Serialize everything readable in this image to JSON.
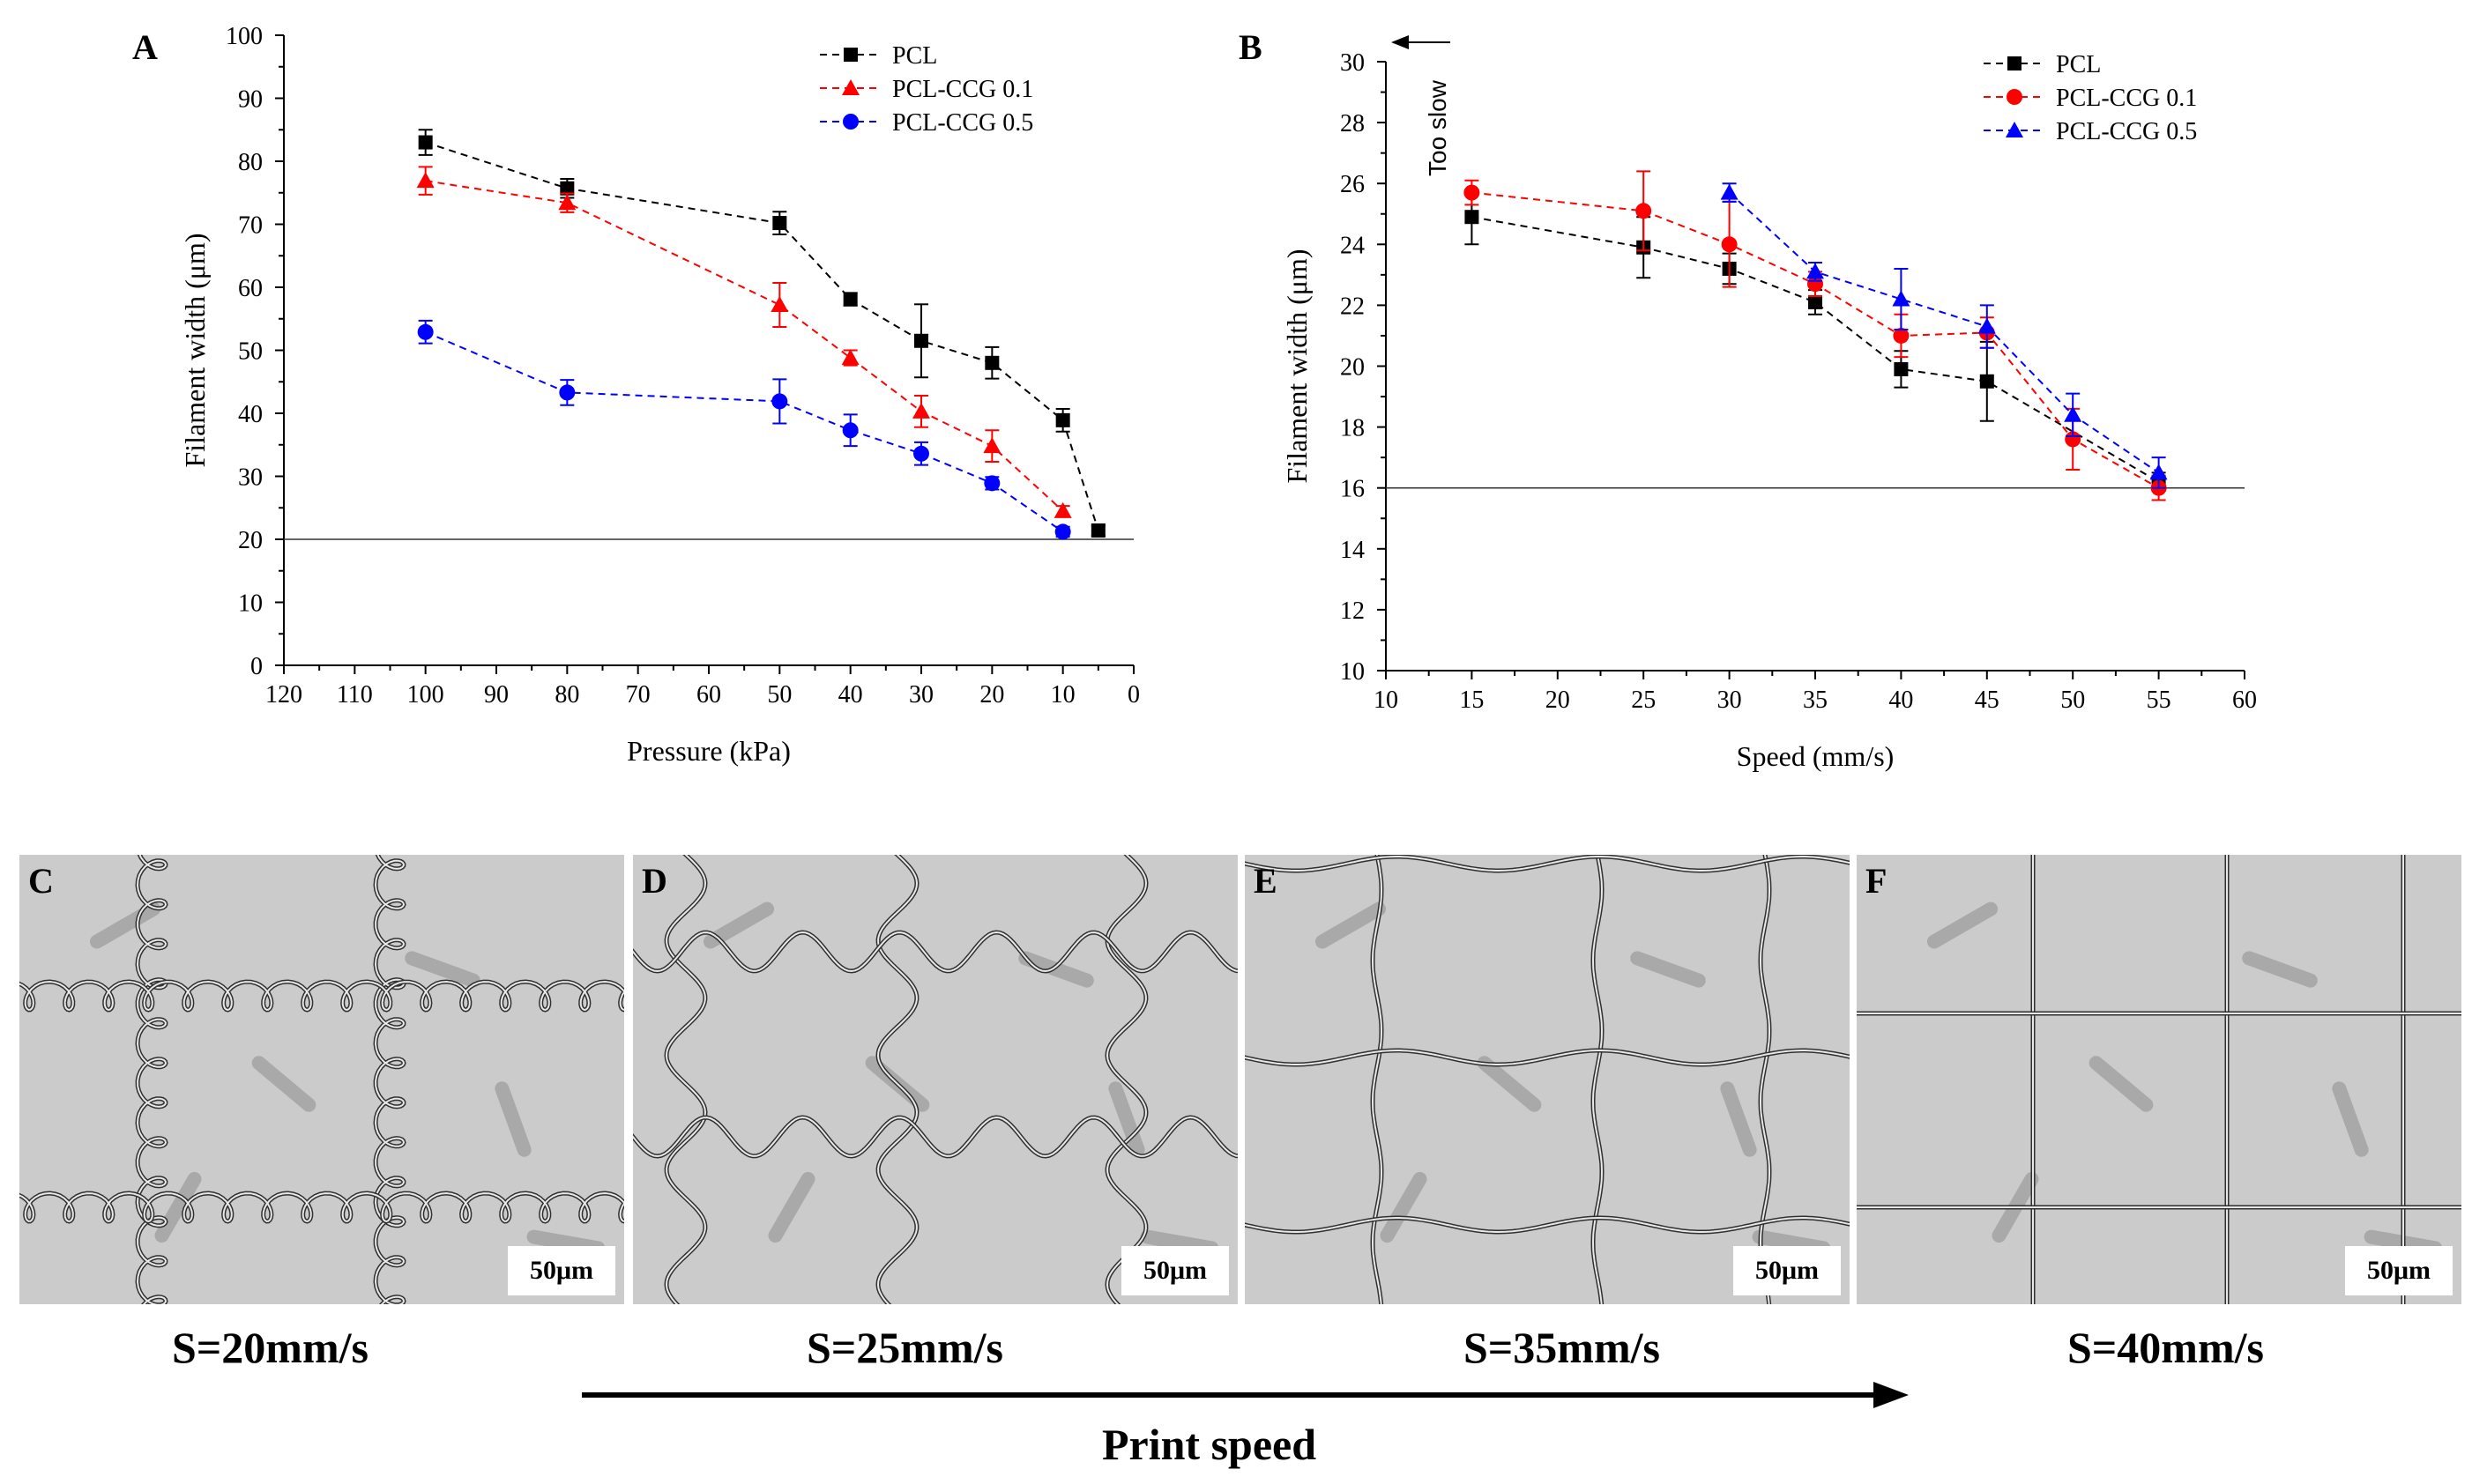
{
  "chart_data": [
    {
      "panel": "A",
      "type": "line",
      "xlabel": "Pressure (kPa)",
      "ylabel": "Filament width (μm)",
      "xlim": [
        120,
        0
      ],
      "ylim": [
        0,
        100
      ],
      "xticks": [
        "120",
        "110",
        "100",
        "90",
        "80",
        "70",
        "60",
        "50",
        "40",
        "30",
        "20",
        "10",
        "0"
      ],
      "yticks": [
        "0",
        "10",
        "20",
        "30",
        "40",
        "50",
        "60",
        "70",
        "80",
        "90",
        "100"
      ],
      "reference_line_y": 20,
      "legend_position": "top-right",
      "series": [
        {
          "name": "PCL",
          "color": "#000000",
          "marker": "square",
          "x": [
            100,
            80,
            50,
            40,
            30,
            20,
            10,
            5
          ],
          "values": [
            83,
            75.7,
            70.2,
            58.1,
            51.5,
            48,
            38.9,
            21.4
          ],
          "errors": [
            2,
            1.5,
            1.8,
            1,
            5.8,
            2.5,
            1.8,
            0.8
          ]
        },
        {
          "name": "PCL-CCG 0.1",
          "color": "#ff0000",
          "marker": "triangle",
          "x": [
            100,
            80,
            50,
            40,
            30,
            20,
            10
          ],
          "values": [
            76.9,
            73.4,
            57.2,
            48.8,
            40.3,
            34.8,
            24.5
          ],
          "errors": [
            2.2,
            1.5,
            3.5,
            1.2,
            2.5,
            2.5,
            0.8
          ]
        },
        {
          "name": "PCL-CCG 0.5",
          "color": "#0000ff",
          "marker": "circle",
          "x": [
            100,
            80,
            50,
            40,
            30,
            20,
            10
          ],
          "values": [
            52.9,
            43.3,
            41.9,
            37.3,
            33.6,
            28.9,
            21.2
          ],
          "errors": [
            1.8,
            2,
            3.5,
            2.5,
            1.8,
            1,
            0.8
          ]
        }
      ]
    },
    {
      "panel": "B",
      "type": "line",
      "xlabel": "Speed (mm/s)",
      "ylabel": "Filament width  (μm)",
      "xlim": [
        10,
        60
      ],
      "ylim": [
        10,
        30
      ],
      "xticks": [
        "10",
        "15",
        "20",
        "25",
        "30",
        "35",
        "40",
        "45",
        "50",
        "55",
        "60"
      ],
      "yticks": [
        "10",
        "12",
        "14",
        "16",
        "18",
        "20",
        "22",
        "24",
        "26",
        "28",
        "30"
      ],
      "reference_line_y": 16,
      "annotation": "Too slow",
      "legend_position": "top-right",
      "series": [
        {
          "name": "PCL",
          "color": "#000000",
          "marker": "square",
          "x": [
            15,
            25,
            30,
            35,
            40,
            45,
            55
          ],
          "values": [
            24.9,
            23.9,
            23.2,
            22.1,
            19.9,
            19.5,
            16.2
          ],
          "errors": [
            0.9,
            1,
            0.5,
            0.4,
            0.6,
            1.3,
            0.3
          ]
        },
        {
          "name": "PCL-CCG 0.1",
          "color": "#ff0000",
          "marker": "circle",
          "x": [
            15,
            25,
            30,
            35,
            40,
            45,
            50,
            55
          ],
          "values": [
            25.7,
            25.1,
            24,
            22.7,
            21,
            21.1,
            17.6,
            16
          ],
          "errors": [
            0.4,
            1.3,
            1.4,
            0.4,
            0.7,
            0.5,
            1,
            0.4
          ]
        },
        {
          "name": "PCL-CCG 0.5",
          "color": "#0000ff",
          "marker": "triangle",
          "x": [
            30,
            35,
            40,
            45,
            50,
            55
          ],
          "values": [
            25.7,
            23.1,
            22.2,
            21.3,
            18.4,
            16.5
          ],
          "errors": [
            0.3,
            0.3,
            1,
            0.7,
            0.7,
            0.5
          ]
        }
      ]
    }
  ],
  "micrographs": [
    {
      "label": "C",
      "scale": "50μm",
      "caption": "S=20mm/s",
      "pattern": "coiled"
    },
    {
      "label": "D",
      "scale": "50μm",
      "caption": "S=25mm/s",
      "pattern": "wavy"
    },
    {
      "label": "E",
      "scale": "50μm",
      "caption": "S=35mm/s",
      "pattern": "slightly-wavy"
    },
    {
      "label": "F",
      "scale": "50μm",
      "caption": "S=40mm/s",
      "pattern": "straight"
    }
  ],
  "arrow_label": "Print speed"
}
